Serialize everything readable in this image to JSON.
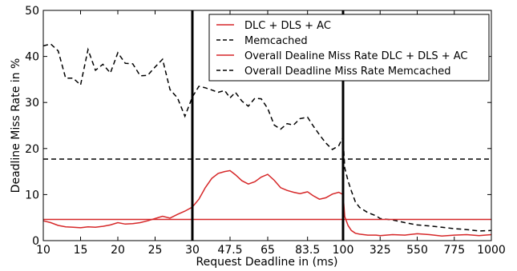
{
  "chart_data": {
    "type": "line",
    "title": "",
    "xlabel": "Request Deadline in (ms)",
    "ylabel": "Deadline Miss Rate in %",
    "ylim": [
      0,
      50
    ],
    "yticks": [
      0,
      10,
      20,
      30,
      40,
      50
    ],
    "xscale": "piecewise",
    "x_segments": [
      {
        "from": 10,
        "to": 30,
        "ticks": [
          10,
          15,
          20,
          25,
          30
        ]
      },
      {
        "from": 30,
        "to": 100,
        "ticks": [
          30,
          47.5,
          65,
          83.5,
          100
        ]
      },
      {
        "from": 100,
        "to": 1000,
        "ticks": [
          100,
          325,
          550,
          775,
          1000
        ]
      }
    ],
    "xtick_labels": [
      "10",
      "15",
      "20",
      "25",
      "30",
      "47.5",
      "65",
      "83.5",
      "100",
      "325",
      "550",
      "775",
      "1000"
    ],
    "vertical_lines_at": [
      30,
      100
    ],
    "grid": false,
    "legend_position": "top-right",
    "legend": [
      {
        "label": "DLC + DLS + AC",
        "color": "#d62728",
        "style": "solid"
      },
      {
        "label": "Memcached",
        "color": "#000000",
        "style": "dashed"
      },
      {
        "label": "Overall Dealine Miss Rate DLC + DLS + AC",
        "color": "#d62728",
        "style": "solid"
      },
      {
        "label": "Overall Deadline Miss Rate Memcached",
        "color": "#000000",
        "style": "dashed"
      }
    ],
    "series": [
      {
        "name": "DLC + DLS + AC",
        "color": "#d62728",
        "style": "solid",
        "x": [
          10,
          11,
          12,
          13,
          14,
          15,
          16,
          17,
          18,
          19,
          20,
          21,
          22,
          23,
          24,
          25,
          26,
          27,
          28,
          29,
          30,
          33,
          36,
          39,
          42,
          45,
          47.5,
          50,
          53,
          56,
          59,
          62,
          65,
          68,
          71,
          74,
          77,
          80,
          83.5,
          86,
          89,
          92,
          95,
          98,
          100,
          110,
          130,
          150,
          175,
          200,
          250,
          300,
          325,
          400,
          475,
          550,
          625,
          700,
          775,
          850,
          925,
          1000
        ],
        "y": [
          4.3,
          3.9,
          3.3,
          3.0,
          2.9,
          2.8,
          3.0,
          2.9,
          3.1,
          3.4,
          3.9,
          3.6,
          3.7,
          3.9,
          4.3,
          4.8,
          5.3,
          4.9,
          5.7,
          6.4,
          7.3,
          9.0,
          11.5,
          13.5,
          14.6,
          15.0,
          15.2,
          14.3,
          13.0,
          12.3,
          12.8,
          13.8,
          14.4,
          13.1,
          11.5,
          10.9,
          10.5,
          10.2,
          10.6,
          9.8,
          9.0,
          9.3,
          10.1,
          10.5,
          10.0,
          5.2,
          3.3,
          2.2,
          1.6,
          1.4,
          1.2,
          1.2,
          1.1,
          1.3,
          1.2,
          1.5,
          1.3,
          1.0,
          1.2,
          1.3,
          1.1,
          1.3
        ]
      },
      {
        "name": "Memcached",
        "color": "#000000",
        "style": "dashed",
        "x": [
          10,
          11,
          12,
          13,
          14,
          15,
          16,
          17,
          18,
          19,
          20,
          21,
          22,
          23,
          24,
          25,
          26,
          27,
          28,
          29,
          30,
          33,
          36,
          39,
          42,
          45,
          47.5,
          50,
          53,
          56,
          59,
          62,
          65,
          68,
          71,
          74,
          77,
          80,
          83.5,
          86,
          89,
          92,
          95,
          98,
          100,
          110,
          130,
          150,
          175,
          200,
          250,
          300,
          325,
          400,
          475,
          550,
          625,
          700,
          775,
          850,
          925,
          1000
        ],
        "y": [
          42.3,
          42.7,
          41.2,
          35.3,
          35.3,
          33.8,
          41.5,
          37.0,
          38.3,
          36.4,
          40.8,
          38.5,
          38.4,
          35.8,
          35.9,
          37.7,
          39.4,
          32.8,
          31.0,
          27.0,
          31.2,
          33.5,
          33.2,
          32.7,
          32.2,
          32.6,
          31.0,
          32.2,
          30.3,
          29.2,
          30.9,
          30.8,
          28.7,
          25.1,
          24.2,
          25.4,
          25.1,
          26.5,
          26.8,
          25.0,
          23.0,
          21.2,
          19.8,
          20.6,
          22.5,
          15.8,
          13.0,
          10.8,
          8.4,
          7.2,
          6.1,
          5.4,
          4.8,
          4.5,
          3.9,
          3.4,
          3.2,
          2.9,
          2.6,
          2.4,
          2.1,
          2.2
        ]
      },
      {
        "name": "Overall Dealine Miss Rate DLC + DLS + AC",
        "color": "#d62728",
        "style": "solid",
        "x": [
          10,
          1000
        ],
        "y": [
          4.6,
          4.6
        ]
      },
      {
        "name": "Overall Deadline Miss Rate Memcached",
        "color": "#000000",
        "style": "dashed",
        "x": [
          10,
          1000
        ],
        "y": [
          17.7,
          17.7
        ]
      }
    ]
  }
}
